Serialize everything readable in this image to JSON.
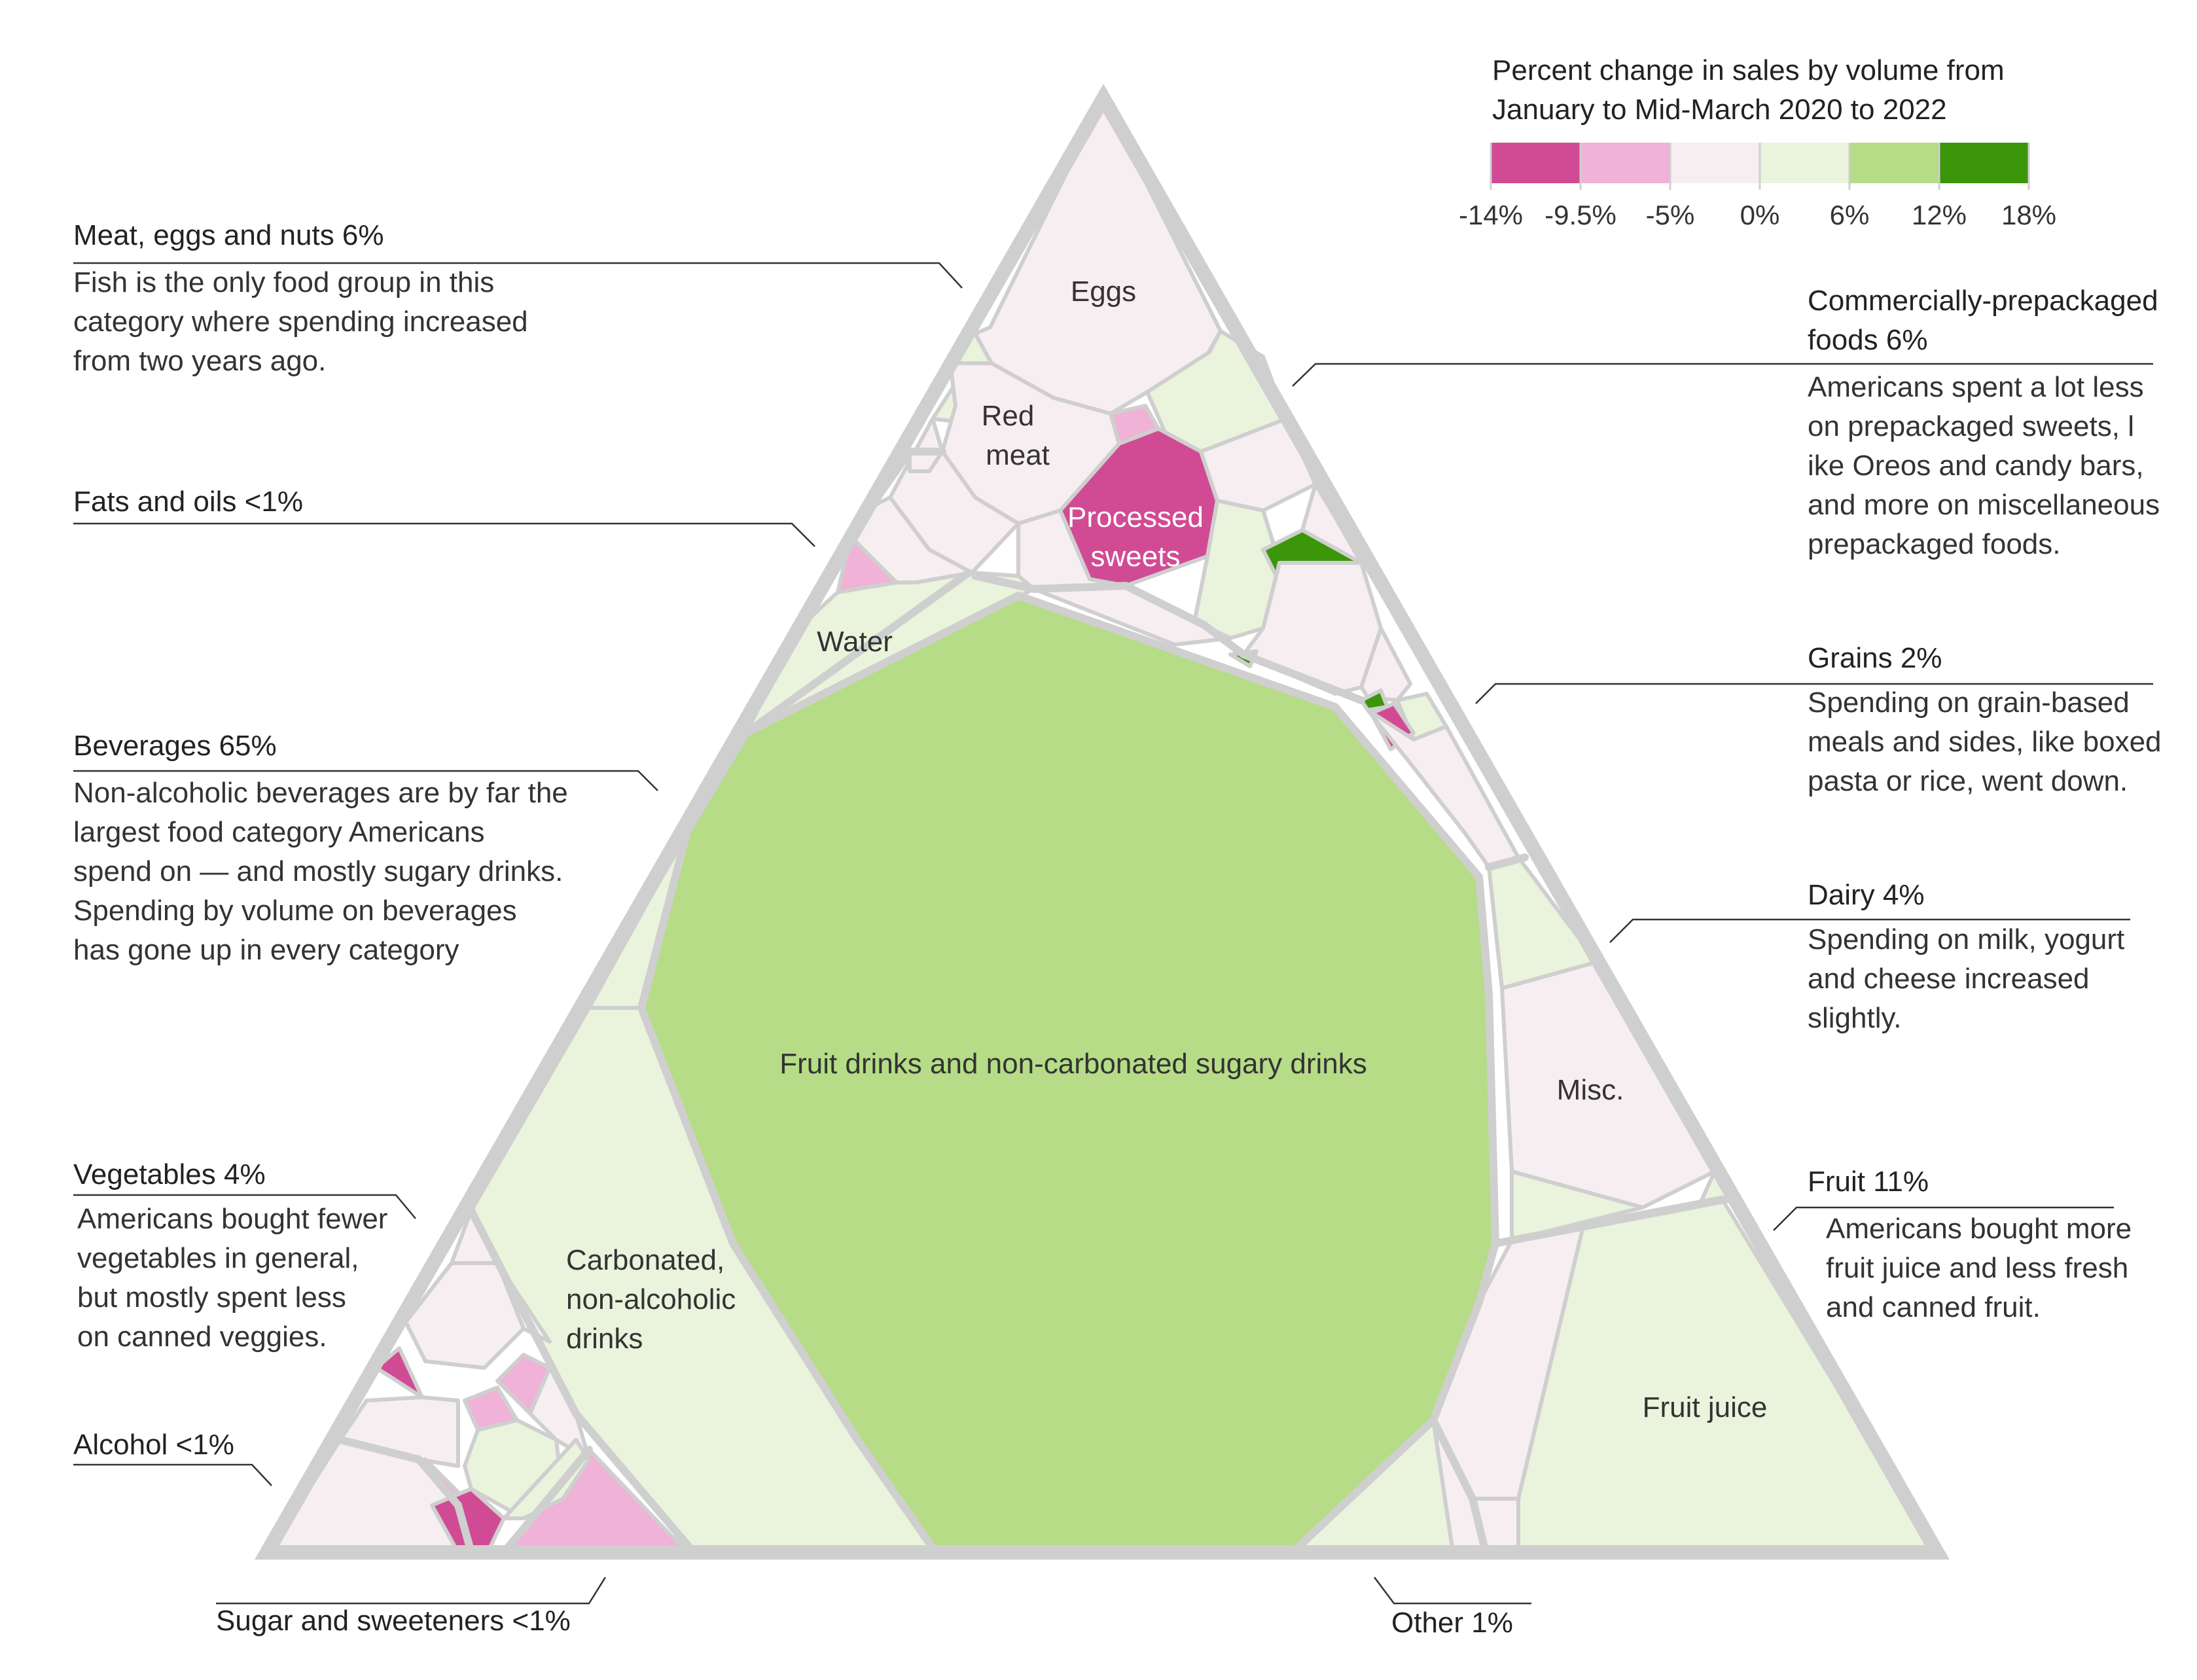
{
  "chart_data": {
    "type": "voronoi-treemap",
    "legend": {
      "title_line1": "Percent change in sales by volume from",
      "title_line2": "January to Mid-March 2020 to 2022",
      "bins": [
        {
          "from": -14,
          "to": -9.5,
          "color": "#d14b94"
        },
        {
          "from": -9.5,
          "to": -5,
          "color": "#f0b2d6"
        },
        {
          "from": -5,
          "to": 0,
          "color": "#f7eef2"
        },
        {
          "from": 0,
          "to": 6,
          "color": "#eaf3dc"
        },
        {
          "from": 6,
          "to": 12,
          "color": "#b6dc87"
        },
        {
          "from": 12,
          "to": 18,
          "color": "#3c9609"
        }
      ],
      "tick_labels": [
        "-14%",
        "-9.5%",
        "-5%",
        "0%",
        "6%",
        "12%",
        "18%"
      ]
    },
    "cell_labels": {
      "eggs": "Eggs",
      "red_meat_1": "Red",
      "red_meat_2": "meat",
      "processed_1": "Processed",
      "processed_2": "sweets",
      "water": "Water",
      "fruit_drinks": "Fruit drinks and non-carbonated sugary drinks",
      "carbonated_1": "Carbonated,",
      "carbonated_2": "non-alcoholic",
      "carbonated_3": "drinks",
      "misc": "Misc.",
      "fruit_juice": "Fruit juice"
    },
    "categories": [
      {
        "name": "Meat, eggs and nuts",
        "share": "6%"
      },
      {
        "name": "Fats and oils",
        "share": "<1%"
      },
      {
        "name": "Beverages",
        "share": "65%"
      },
      {
        "name": "Vegetables",
        "share": "4%"
      },
      {
        "name": "Alcohol",
        "share": "<1%"
      },
      {
        "name": "Sugar and sweeteners",
        "share": "<1%"
      },
      {
        "name": "Commercially-prepackaged foods",
        "share": "6%"
      },
      {
        "name": "Grains",
        "share": "2%"
      },
      {
        "name": "Dairy",
        "share": "4%"
      },
      {
        "name": "Fruit",
        "share": "11%"
      },
      {
        "name": "Other",
        "share": "1%"
      }
    ]
  },
  "annotations": {
    "meat": {
      "title": "Meat, eggs and nuts  6%",
      "lines": [
        "Fish is the only food group in this",
        "category where spending increased",
        "from two years ago."
      ]
    },
    "fats": {
      "title": "Fats and oils <1%"
    },
    "beverages": {
      "title": "Beverages  65%",
      "lines": [
        "Non-alcoholic beverages are by far the",
        "largest food category Americans",
        "spend on — and mostly sugary drinks.",
        "Spending by volume on beverages",
        "has gone up in every category"
      ]
    },
    "vegetables": {
      "title": "Vegetables  4%",
      "lines": [
        "Americans bought fewer",
        "vegetables in general,",
        "but mostly spent less",
        "on canned veggies."
      ]
    },
    "alcohol": {
      "title": "Alcohol  <1%"
    },
    "sugar": {
      "title": "Sugar and sweeteners  <1%"
    },
    "prepack": {
      "title_line1": "Commercially-prepackaged",
      "title_line2": "foods  6%",
      "lines": [
        "Americans spent a lot less",
        "on prepackaged sweets, l",
        "ike Oreos and candy bars,",
        "and more on miscellaneous",
        "prepackaged foods."
      ]
    },
    "grains": {
      "title": "Grains  2%",
      "lines": [
        "Spending on grain-based",
        "meals and sides, like boxed",
        "pasta or rice, went down."
      ]
    },
    "dairy": {
      "title": "Dairy  4%",
      "lines": [
        "Spending on milk, yogurt",
        "and cheese increased",
        "slightly."
      ]
    },
    "fruit": {
      "title": "Fruit  11%",
      "lines": [
        "Americans bought more",
        "fruit juice and less fresh",
        "and canned fruit."
      ]
    },
    "other": {
      "title": "Other  1%"
    }
  }
}
